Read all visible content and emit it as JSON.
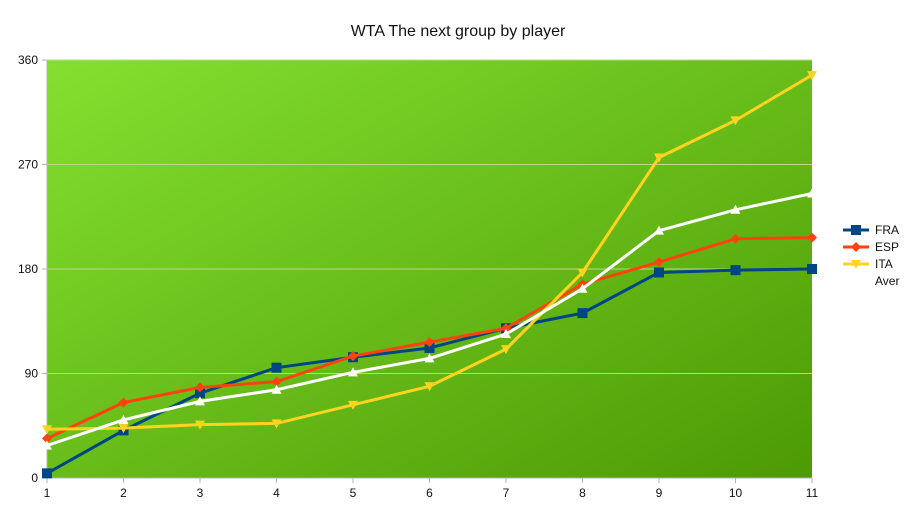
{
  "chart_data": {
    "type": "line",
    "title": "WTA The next group by player",
    "xlabel": "",
    "ylabel": "",
    "x": [
      1,
      2,
      3,
      4,
      5,
      6,
      7,
      8,
      9,
      10,
      11
    ],
    "ylim": [
      0,
      360
    ],
    "yticks": [
      0,
      90,
      180,
      270,
      360
    ],
    "grid": true,
    "legend": "right",
    "background_gradient": [
      "#84e030",
      "#4d9a04"
    ],
    "series": [
      {
        "name": "FRA",
        "color": "#004586",
        "marker": "square",
        "values": [
          4,
          41,
          73,
          95,
          104,
          112,
          129,
          142,
          177,
          179,
          180
        ]
      },
      {
        "name": "ESP",
        "color": "#ff420e",
        "marker": "diamond",
        "values": [
          34,
          65,
          78,
          83,
          105,
          117,
          129,
          167,
          186,
          206,
          207
        ]
      },
      {
        "name": "ITA",
        "color": "#ffd320",
        "marker": "triangle-down",
        "values": [
          42,
          43,
          46,
          47,
          63,
          79,
          111,
          177,
          276,
          308,
          347
        ]
      },
      {
        "name": "Aver",
        "color": "#ffffff",
        "marker": "triangle-up",
        "values": [
          28,
          50,
          66,
          76,
          91,
          103,
          124,
          163,
          213,
          231,
          245
        ]
      }
    ]
  }
}
